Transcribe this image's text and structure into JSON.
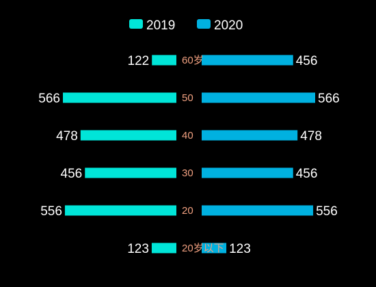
{
  "chart_data": {
    "type": "bar",
    "orientation": "horizontal-butterfly",
    "categories": [
      "60岁",
      "50",
      "40",
      "30",
      "20",
      "20岁以下"
    ],
    "series": [
      {
        "name": "2019",
        "values": [
          122,
          566,
          478,
          456,
          556,
          123
        ],
        "color": "#00e5d8",
        "side": "left"
      },
      {
        "name": "2020",
        "values": [
          456,
          566,
          478,
          456,
          556,
          123
        ],
        "color": "#00b1e0",
        "side": "right"
      }
    ],
    "xlim": [
      0,
      566
    ],
    "legend": "top-center",
    "grid": false
  }
}
